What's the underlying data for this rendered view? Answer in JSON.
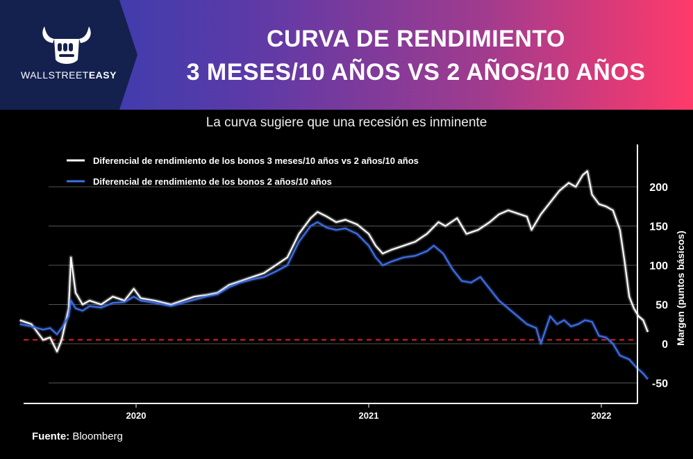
{
  "header": {
    "brand_plain": "WALLSTREET",
    "brand_bold": "EASY",
    "title_line1": "CURVA DE RENDIMIENTO",
    "title_line2": "3 MESES/10 AÑOS VS 2 AÑOS/10 AÑOS",
    "logo_icon": "bull-fist-icon"
  },
  "subtitle": "La curva sugiere que una recesión es inminente",
  "source": {
    "label": "Fuente:",
    "value": "Bloomberg"
  },
  "colors": {
    "header_left": "#2a3fb0",
    "header_right": "#ff3a6a",
    "logo_panel": "#14214f",
    "series_3m10y": "#ffffff",
    "series_2y10y": "#3f6fe6",
    "zero_line": "#e01e2a",
    "grid": "#555555"
  },
  "chart_data": {
    "type": "line",
    "title": "",
    "xlabel": "",
    "ylabel": "Margen (puntos básicos)",
    "ylim": [
      -60,
      230
    ],
    "xlim": [
      2019.5,
      2022.4
    ],
    "y_ticks": [
      -50,
      0,
      50,
      100,
      150,
      200
    ],
    "x_ticks": [
      {
        "value": 2020.0,
        "label": "2020"
      },
      {
        "value": 2021.0,
        "label": "2021"
      },
      {
        "value": 2022.0,
        "label": "2022"
      }
    ],
    "grid": "horizontal",
    "legend": "top-left",
    "reference_line": {
      "y": 5,
      "style": "dashed",
      "color": "red"
    },
    "series": [
      {
        "name": "Diferencial de rendimiento de los bonos 3 meses/10 años vs 2 años/10 años",
        "color": "#ffffff",
        "points": [
          [
            2019.5,
            30
          ],
          [
            2019.55,
            25
          ],
          [
            2019.6,
            5
          ],
          [
            2019.63,
            8
          ],
          [
            2019.66,
            -10
          ],
          [
            2019.68,
            5
          ],
          [
            2019.71,
            45
          ],
          [
            2019.72,
            110
          ],
          [
            2019.74,
            65
          ],
          [
            2019.77,
            50
          ],
          [
            2019.8,
            55
          ],
          [
            2019.85,
            50
          ],
          [
            2019.9,
            60
          ],
          [
            2019.95,
            55
          ],
          [
            2019.99,
            70
          ],
          [
            2020.02,
            58
          ],
          [
            2020.08,
            55
          ],
          [
            2020.15,
            50
          ],
          [
            2020.2,
            55
          ],
          [
            2020.25,
            60
          ],
          [
            2020.3,
            62
          ],
          [
            2020.35,
            65
          ],
          [
            2020.4,
            75
          ],
          [
            2020.45,
            80
          ],
          [
            2020.5,
            85
          ],
          [
            2020.55,
            90
          ],
          [
            2020.6,
            100
          ],
          [
            2020.65,
            110
          ],
          [
            2020.7,
            140
          ],
          [
            2020.75,
            160
          ],
          [
            2020.78,
            168
          ],
          [
            2020.82,
            162
          ],
          [
            2020.86,
            155
          ],
          [
            2020.9,
            158
          ],
          [
            2020.95,
            152
          ],
          [
            2021.0,
            140
          ],
          [
            2021.03,
            125
          ],
          [
            2021.06,
            115
          ],
          [
            2021.1,
            120
          ],
          [
            2021.15,
            125
          ],
          [
            2021.2,
            130
          ],
          [
            2021.25,
            140
          ],
          [
            2021.3,
            155
          ],
          [
            2021.33,
            150
          ],
          [
            2021.38,
            160
          ],
          [
            2021.42,
            140
          ],
          [
            2021.47,
            145
          ],
          [
            2021.52,
            155
          ],
          [
            2021.56,
            165
          ],
          [
            2021.6,
            170
          ],
          [
            2021.65,
            165
          ],
          [
            2021.68,
            162
          ],
          [
            2021.7,
            145
          ],
          [
            2021.74,
            165
          ],
          [
            2021.78,
            180
          ],
          [
            2021.82,
            195
          ],
          [
            2021.86,
            205
          ],
          [
            2021.89,
            200
          ],
          [
            2021.92,
            215
          ],
          [
            2021.94,
            220
          ],
          [
            2021.96,
            190
          ],
          [
            2021.99,
            178
          ],
          [
            2022.02,
            175
          ],
          [
            2022.05,
            170
          ],
          [
            2022.08,
            145
          ],
          [
            2022.1,
            105
          ],
          [
            2022.12,
            60
          ],
          [
            2022.14,
            45
          ],
          [
            2022.16,
            35
          ],
          [
            2022.18,
            30
          ],
          [
            2022.2,
            15
          ]
        ]
      },
      {
        "name": "Diferencial de rendimiento de los bonos 2 años/10 años",
        "color": "#3f6fe6",
        "points": [
          [
            2019.5,
            25
          ],
          [
            2019.55,
            22
          ],
          [
            2019.6,
            18
          ],
          [
            2019.63,
            20
          ],
          [
            2019.66,
            12
          ],
          [
            2019.68,
            20
          ],
          [
            2019.71,
            35
          ],
          [
            2019.72,
            55
          ],
          [
            2019.74,
            45
          ],
          [
            2019.77,
            42
          ],
          [
            2019.8,
            48
          ],
          [
            2019.85,
            46
          ],
          [
            2019.9,
            52
          ],
          [
            2019.95,
            53
          ],
          [
            2019.99,
            60
          ],
          [
            2020.02,
            55
          ],
          [
            2020.08,
            52
          ],
          [
            2020.15,
            48
          ],
          [
            2020.2,
            52
          ],
          [
            2020.25,
            56
          ],
          [
            2020.3,
            60
          ],
          [
            2020.35,
            63
          ],
          [
            2020.4,
            72
          ],
          [
            2020.45,
            78
          ],
          [
            2020.5,
            82
          ],
          [
            2020.55,
            85
          ],
          [
            2020.6,
            92
          ],
          [
            2020.65,
            100
          ],
          [
            2020.7,
            130
          ],
          [
            2020.75,
            150
          ],
          [
            2020.78,
            155
          ],
          [
            2020.82,
            148
          ],
          [
            2020.86,
            145
          ],
          [
            2020.9,
            147
          ],
          [
            2020.95,
            140
          ],
          [
            2021.0,
            125
          ],
          [
            2021.03,
            110
          ],
          [
            2021.06,
            100
          ],
          [
            2021.1,
            105
          ],
          [
            2021.15,
            110
          ],
          [
            2021.2,
            112
          ],
          [
            2021.25,
            118
          ],
          [
            2021.28,
            125
          ],
          [
            2021.32,
            115
          ],
          [
            2021.36,
            95
          ],
          [
            2021.4,
            80
          ],
          [
            2021.44,
            78
          ],
          [
            2021.48,
            85
          ],
          [
            2021.52,
            70
          ],
          [
            2021.56,
            55
          ],
          [
            2021.6,
            45
          ],
          [
            2021.64,
            35
          ],
          [
            2021.68,
            25
          ],
          [
            2021.72,
            20
          ],
          [
            2021.74,
            0
          ],
          [
            2021.78,
            35
          ],
          [
            2021.81,
            25
          ],
          [
            2021.84,
            30
          ],
          [
            2021.87,
            22
          ],
          [
            2021.9,
            25
          ],
          [
            2021.93,
            30
          ],
          [
            2021.96,
            28
          ],
          [
            2021.99,
            10
          ],
          [
            2022.02,
            8
          ],
          [
            2022.05,
            0
          ],
          [
            2022.08,
            -15
          ],
          [
            2022.12,
            -20
          ],
          [
            2022.15,
            -30
          ],
          [
            2022.18,
            -38
          ],
          [
            2022.2,
            -45
          ]
        ]
      }
    ]
  }
}
